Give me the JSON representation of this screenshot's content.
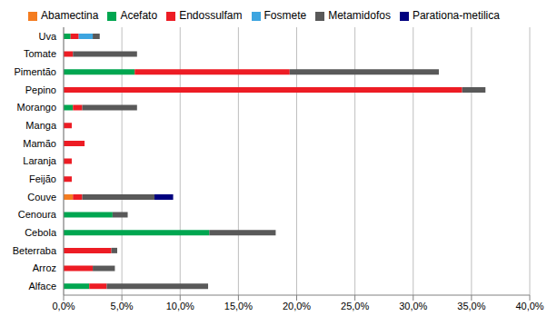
{
  "chart_data": {
    "type": "bar",
    "orientation": "horizontal",
    "stacked": true,
    "grid": true,
    "legend": "top",
    "categories": [
      "Uva",
      "Tomate",
      "Pimentão",
      "Pepino",
      "Morango",
      "Manga",
      "Mamão",
      "Laranja",
      "Feijão",
      "Couve",
      "Cenoura",
      "Cebola",
      "Beterraba",
      "Arroz",
      "Alface"
    ],
    "series": [
      {
        "name": "Abamectina",
        "color": "#F47C20",
        "values": [
          0,
          0,
          0,
          0,
          0,
          0,
          0,
          0,
          0,
          0.8,
          0,
          0,
          0,
          0,
          0
        ]
      },
      {
        "name": "Acefato",
        "color": "#00A650",
        "values": [
          0.6,
          0,
          6.1,
          0,
          0.8,
          0,
          0,
          0,
          0,
          0,
          4.2,
          12.5,
          0,
          0,
          2.2
        ]
      },
      {
        "name": "Endossulfam",
        "color": "#ED1C24",
        "values": [
          0.7,
          0.8,
          13.3,
          34.2,
          0.8,
          0.7,
          1.8,
          0.7,
          0.7,
          0.8,
          0,
          0,
          4.1,
          2.5,
          1.5
        ]
      },
      {
        "name": "Fosmete",
        "color": "#3DA5E0",
        "values": [
          1.2,
          0,
          0,
          0,
          0,
          0,
          0,
          0,
          0,
          0,
          0,
          0,
          0,
          0,
          0
        ]
      },
      {
        "name": "Metamidofos",
        "color": "#595959",
        "values": [
          0.6,
          5.5,
          12.8,
          2.0,
          4.7,
          0,
          0,
          0,
          0,
          6.2,
          1.3,
          5.7,
          0.5,
          1.9,
          8.7
        ]
      },
      {
        "name": "Parationa-metilica",
        "color": "#00007F",
        "values": [
          0,
          0,
          0,
          0,
          0,
          0,
          0,
          0,
          0,
          1.6,
          0,
          0,
          0,
          0,
          0
        ]
      }
    ],
    "xlim": [
      0,
      40
    ],
    "xticks": [
      {
        "value": 0,
        "label": "0,0%"
      },
      {
        "value": 5,
        "label": "5,0%"
      },
      {
        "value": 10,
        "label": "10,0%"
      },
      {
        "value": 15,
        "label": "15,0%"
      },
      {
        "value": 20,
        "label": "20,0%"
      },
      {
        "value": 25,
        "label": "25,0%"
      },
      {
        "value": 30,
        "label": "30,0%"
      },
      {
        "value": 35,
        "label": "35,0%"
      },
      {
        "value": 40,
        "label": "40,0%"
      }
    ]
  }
}
